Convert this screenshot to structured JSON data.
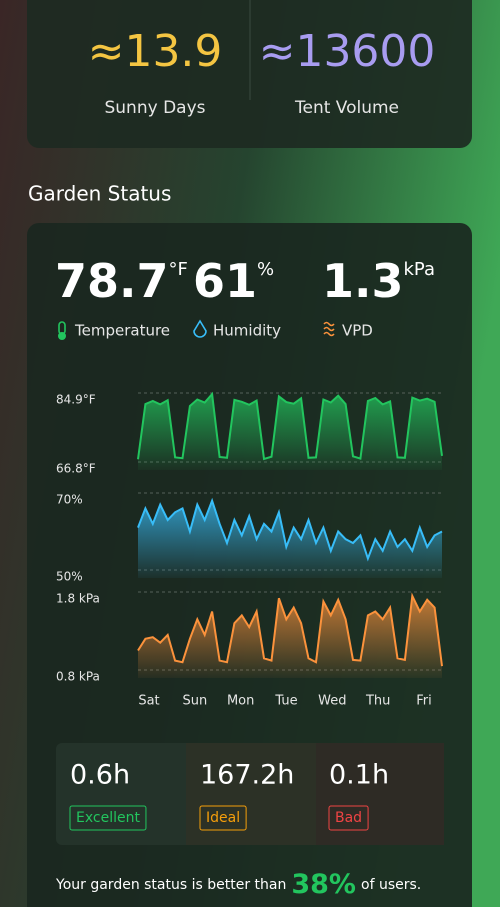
{
  "summary": [
    {
      "value": "≈13.9",
      "label": "Sunny Days",
      "color": "#f4c542"
    },
    {
      "value": "≈13600",
      "label": "Tent Volume",
      "color": "#a89cf0"
    }
  ],
  "section_title": "Garden Status",
  "readings": [
    {
      "value": 78.7,
      "unit": "°F",
      "label": "Temperature",
      "color": "#22c55e"
    },
    {
      "value": 61,
      "unit": "%",
      "label": "Humidity",
      "color": "#38bdf8"
    },
    {
      "value": 1.3,
      "unit": "kPa",
      "label": "VPD",
      "color": "#fb923c"
    }
  ],
  "chart_data": [
    {
      "type": "line",
      "color": "#22c55e",
      "ylim": [
        66.8,
        84.9
      ],
      "yticks": [
        {
          "value": 84.9,
          "label": "84.9°F"
        },
        {
          "value": 66.8,
          "label": "66.8°F"
        }
      ],
      "values": [
        67.5,
        82.0,
        82.8,
        81.9,
        83.0,
        68.0,
        67.8,
        81.5,
        83.2,
        82.4,
        84.6,
        68.1,
        67.9,
        83.1,
        82.6,
        81.8,
        82.9,
        67.6,
        68.2,
        84.0,
        82.5,
        82.1,
        83.5,
        67.9,
        68.0,
        83.2,
        82.4,
        84.2,
        82.0,
        68.3,
        67.7,
        82.8,
        83.6,
        81.9,
        82.7,
        68.0,
        67.9,
        83.7,
        82.9,
        83.4,
        82.6,
        68.4
      ]
    },
    {
      "type": "line",
      "color": "#38bdf8",
      "ylim": [
        50,
        70
      ],
      "yticks": [
        {
          "value": 70,
          "label": "70%"
        },
        {
          "value": 50,
          "label": "50%"
        }
      ],
      "values": [
        61,
        66,
        62,
        67,
        63,
        65,
        66,
        60,
        67,
        63,
        68,
        62,
        57,
        63,
        59,
        64,
        58,
        62,
        60,
        65,
        56,
        61,
        58,
        63,
        57,
        61,
        55,
        60,
        58,
        57,
        59,
        53,
        58,
        55,
        60,
        56,
        58,
        55,
        61,
        56,
        59,
        60
      ]
    },
    {
      "type": "line",
      "color": "#fb923c",
      "ylim": [
        0.8,
        1.8
      ],
      "yticks": [
        {
          "value": 1.8,
          "label": "1.8 kPa"
        },
        {
          "value": 0.8,
          "label": "0.8 kPa"
        }
      ],
      "values": [
        1.05,
        1.2,
        1.22,
        1.15,
        1.25,
        0.92,
        0.9,
        1.2,
        1.45,
        1.25,
        1.55,
        0.92,
        0.9,
        1.4,
        1.5,
        1.35,
        1.55,
        0.95,
        0.92,
        1.72,
        1.45,
        1.6,
        1.4,
        0.95,
        0.9,
        1.68,
        1.5,
        1.7,
        1.45,
        0.93,
        0.92,
        1.5,
        1.55,
        1.45,
        1.6,
        0.95,
        0.93,
        1.75,
        1.55,
        1.7,
        1.6,
        0.85
      ]
    }
  ],
  "day_labels": [
    "Sat",
    "Sun",
    "Mon",
    "Tue",
    "Wed",
    "Thu",
    "Fri"
  ],
  "durations": [
    {
      "value": "0.6h",
      "label": "Excellent",
      "color": "#22c55e"
    },
    {
      "value": "167.2h",
      "label": "Ideal",
      "color": "#f59e0b"
    },
    {
      "value": "0.1h",
      "label": "Bad",
      "color": "#ef4444"
    }
  ],
  "footer": {
    "prefix": "Your garden status is better than",
    "percent": "38%",
    "suffix": "of users."
  }
}
